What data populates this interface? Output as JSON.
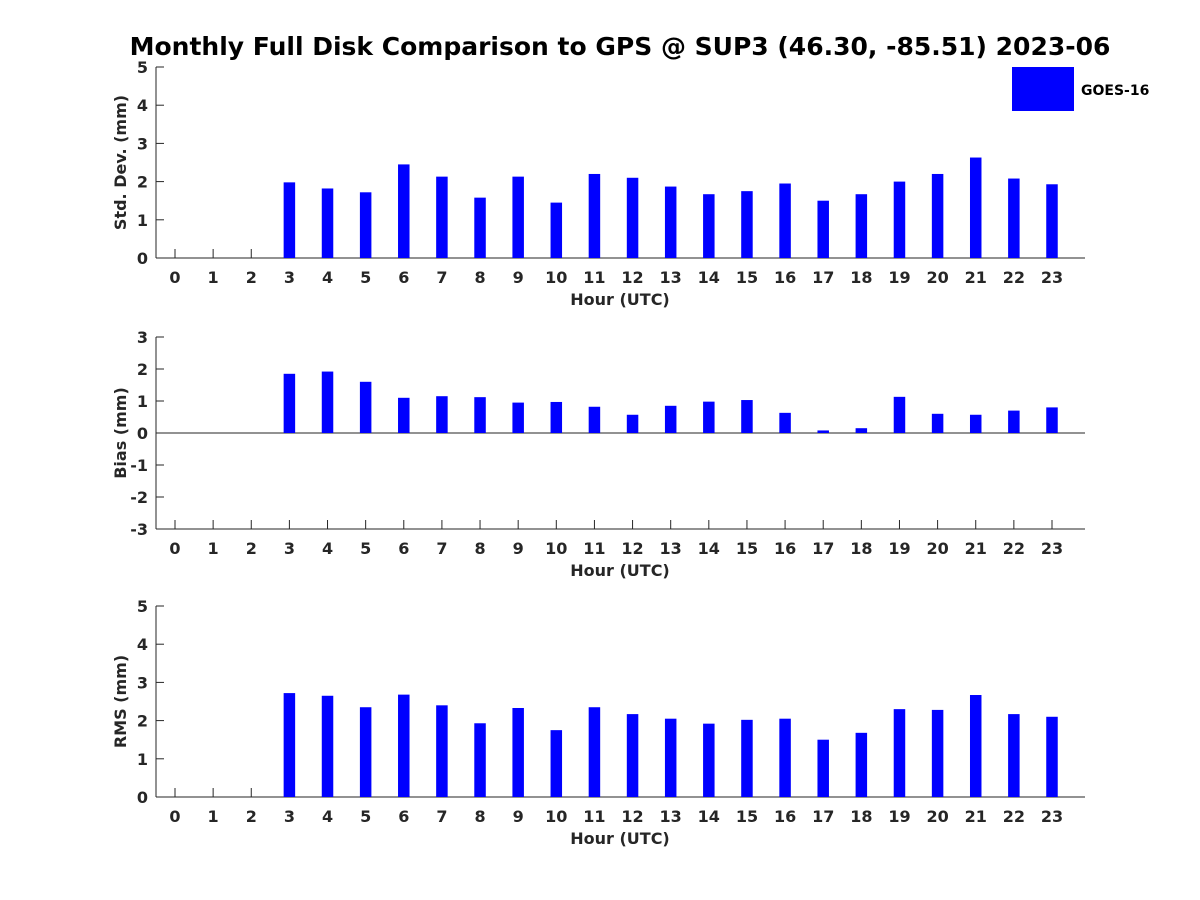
{
  "title": "Monthly Full Disk Comparison to GPS @ SUP3 (46.30, -85.51) 2023-06",
  "legend": {
    "label": "GOES-16",
    "color": "#0000ff",
    "placement": "top-right"
  },
  "chart_data": [
    {
      "type": "bar",
      "ylabel": "Std. Dev. (mm)",
      "xlabel": "Hour (UTC)",
      "ylim": [
        0,
        5
      ],
      "yticks": [
        "0",
        "1",
        "2",
        "3",
        "4",
        "5"
      ],
      "categories": [
        "0",
        "1",
        "2",
        "3",
        "4",
        "5",
        "6",
        "7",
        "8",
        "9",
        "10",
        "11",
        "12",
        "13",
        "14",
        "15",
        "16",
        "17",
        "18",
        "19",
        "20",
        "21",
        "22",
        "23"
      ],
      "series": [
        {
          "name": "GOES-16",
          "color": "#0000ff",
          "values": [
            null,
            null,
            null,
            1.98,
            1.82,
            1.72,
            2.45,
            2.13,
            1.58,
            2.13,
            1.45,
            2.2,
            2.1,
            1.87,
            1.67,
            1.75,
            1.95,
            1.5,
            1.67,
            2.0,
            2.2,
            2.63,
            2.08,
            1.93
          ]
        }
      ]
    },
    {
      "type": "bar",
      "ylabel": "Bias (mm)",
      "xlabel": "Hour (UTC)",
      "ylim": [
        -3,
        3
      ],
      "yticks": [
        "-3",
        "-2",
        "-1",
        "0",
        "1",
        "2",
        "3"
      ],
      "categories": [
        "0",
        "1",
        "2",
        "3",
        "4",
        "5",
        "6",
        "7",
        "8",
        "9",
        "10",
        "11",
        "12",
        "13",
        "14",
        "15",
        "16",
        "17",
        "18",
        "19",
        "20",
        "21",
        "22",
        "23"
      ],
      "series": [
        {
          "name": "GOES-16",
          "color": "#0000ff",
          "values": [
            null,
            null,
            null,
            1.85,
            1.92,
            1.6,
            1.1,
            1.15,
            1.12,
            0.95,
            0.97,
            0.82,
            0.57,
            0.85,
            0.98,
            1.03,
            0.63,
            0.08,
            0.15,
            1.13,
            0.6,
            0.57,
            0.7,
            0.8
          ]
        }
      ]
    },
    {
      "type": "bar",
      "ylabel": "RMS (mm)",
      "xlabel": "Hour (UTC)",
      "ylim": [
        0,
        5
      ],
      "yticks": [
        "0",
        "1",
        "2",
        "3",
        "4",
        "5"
      ],
      "categories": [
        "0",
        "1",
        "2",
        "3",
        "4",
        "5",
        "6",
        "7",
        "8",
        "9",
        "10",
        "11",
        "12",
        "13",
        "14",
        "15",
        "16",
        "17",
        "18",
        "19",
        "20",
        "21",
        "22",
        "23"
      ],
      "series": [
        {
          "name": "GOES-16",
          "color": "#0000ff",
          "values": [
            null,
            null,
            null,
            2.72,
            2.65,
            2.35,
            2.68,
            2.4,
            1.93,
            2.33,
            1.75,
            2.35,
            2.17,
            2.05,
            1.92,
            2.02,
            2.05,
            1.5,
            1.68,
            2.3,
            2.28,
            2.67,
            2.17,
            2.1
          ]
        }
      ]
    }
  ]
}
